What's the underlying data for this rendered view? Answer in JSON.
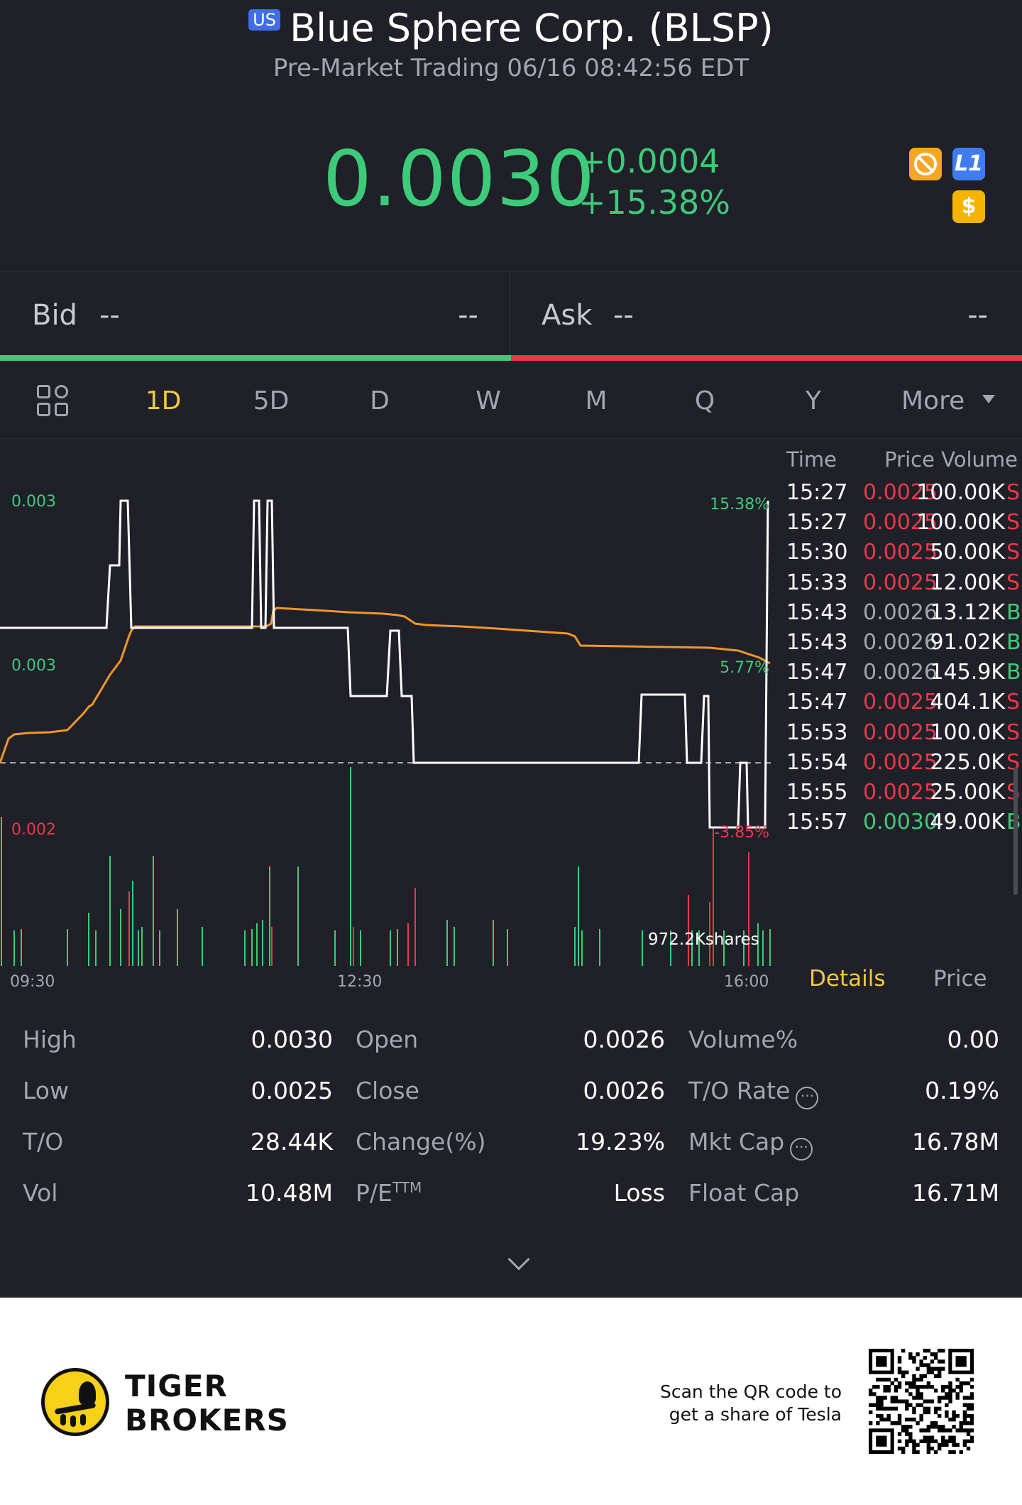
{
  "header": {
    "market_badge": "US",
    "title": "Blue Sphere Corp. (BLSP)",
    "subtitle": "Pre-Market Trading 06/16 08:42:56 EDT",
    "price": "0.0030",
    "change_abs": "+0.0004",
    "change_pct": "+15.38%",
    "icons": [
      "no-short-icon",
      "level1-icon",
      "dollar-icon"
    ],
    "icon_l1_text": "L1",
    "icon_dollar_text": "$"
  },
  "bid_ask": {
    "bid_label": "Bid",
    "bid_price": "--",
    "bid_size": "--",
    "ask_label": "Ask",
    "ask_price": "--",
    "ask_size": "--"
  },
  "tabs": {
    "items": [
      "1D",
      "5D",
      "D",
      "W",
      "M",
      "Q",
      "Y"
    ],
    "active": "1D",
    "more": "More"
  },
  "chart": {
    "y_labels": [
      "0.003",
      "0.003",
      "0.002"
    ],
    "pct_labels": [
      "15.38%",
      "5.77%",
      "-3.85%"
    ],
    "x_labels": [
      "09:30",
      "12:30",
      "16:00"
    ],
    "volume_label": "972.2Kshares",
    "colors": {
      "price_line": "#ffffff",
      "avg_line": "#f0962a",
      "up": "#3ecb79",
      "down": "#e8394a"
    }
  },
  "chart_data": {
    "type": "line",
    "x": [
      "09:30",
      "12:30",
      "16:00"
    ],
    "y_axis": [
      "0.002",
      "0.003",
      "0.003"
    ],
    "series_pct": [
      "-3.85%",
      "5.77%",
      "15.38%"
    ]
  },
  "trades": {
    "header_time": "Time",
    "header_pv": "Price Volume",
    "rows": [
      {
        "time": "15:27",
        "price": "0.0025",
        "volume": "100.00K",
        "side": "S",
        "color": "red"
      },
      {
        "time": "15:27",
        "price": "0.0025",
        "volume": "100.00K",
        "side": "S",
        "color": "red"
      },
      {
        "time": "15:30",
        "price": "0.0025",
        "volume": "50.00K",
        "side": "S",
        "color": "red"
      },
      {
        "time": "15:33",
        "price": "0.0025",
        "volume": "12.00K",
        "side": "S",
        "color": "red"
      },
      {
        "time": "15:43",
        "price": "0.0026",
        "volume": "13.12K",
        "side": "B",
        "color": "gray"
      },
      {
        "time": "15:43",
        "price": "0.0026",
        "volume": "91.02K",
        "side": "B",
        "color": "gray"
      },
      {
        "time": "15:47",
        "price": "0.0026",
        "volume": "145.9K",
        "side": "B",
        "color": "gray"
      },
      {
        "time": "15:47",
        "price": "0.0025",
        "volume": "404.1K",
        "side": "S",
        "color": "red"
      },
      {
        "time": "15:53",
        "price": "0.0025",
        "volume": "100.0K",
        "side": "S",
        "color": "red"
      },
      {
        "time": "15:54",
        "price": "0.0025",
        "volume": "225.0K",
        "side": "S",
        "color": "red"
      },
      {
        "time": "15:55",
        "price": "0.0025",
        "volume": "25.00K",
        "side": "S",
        "color": "red"
      },
      {
        "time": "15:57",
        "price": "0.0030",
        "volume": "49.00K",
        "side": "B",
        "color": "green"
      }
    ],
    "tab_details": "Details",
    "tab_price": "Price"
  },
  "stats": {
    "high_label": "High",
    "high": "0.0030",
    "open_label": "Open",
    "open": "0.0026",
    "volpct_label": "Volume%",
    "volpct": "0.00",
    "low_label": "Low",
    "low": "0.0025",
    "close_label": "Close",
    "close": "0.0026",
    "turnover_rate_label": "T/O Rate",
    "turnover_rate": "0.19%",
    "to_label": "T/O",
    "to": "28.44K",
    "change_label": "Change(%)",
    "change": "19.23%",
    "mktcap_label": "Mkt Cap",
    "mktcap": "16.78M",
    "vol_label": "Vol",
    "vol": "10.48M",
    "pe_label": "P/E",
    "pe_sup": "TTM",
    "pe": "Loss",
    "floatcap_label": "Float Cap",
    "floatcap": "16.71M"
  },
  "footer": {
    "brand_line1": "TIGER",
    "brand_line2": "BROKERS",
    "scan_line1": "Scan the QR code to",
    "scan_line2": "get a share of Tesla"
  }
}
